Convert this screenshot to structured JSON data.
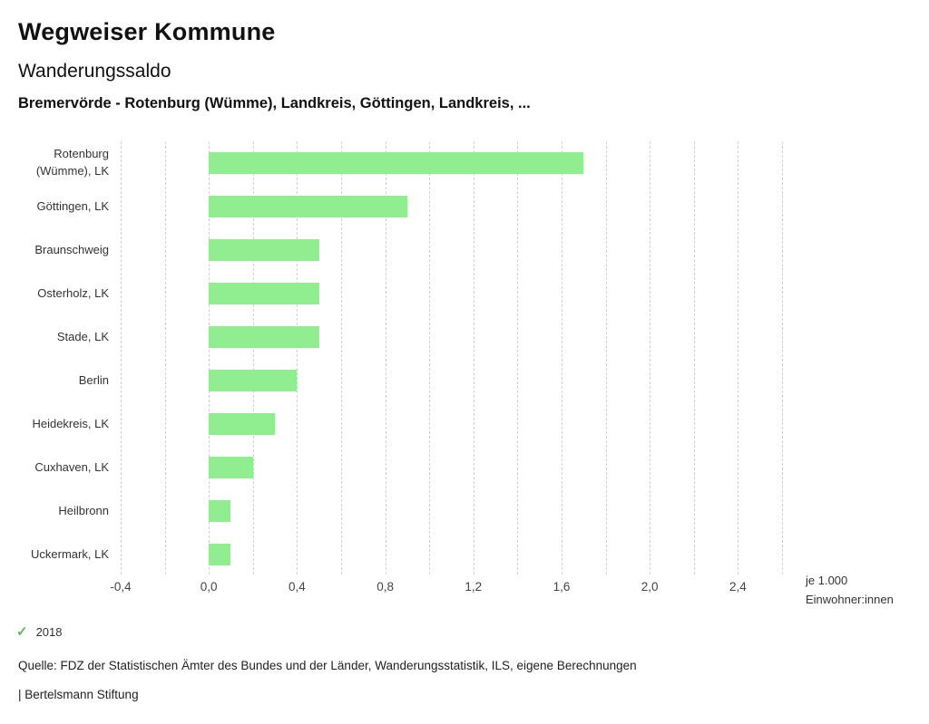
{
  "header": {
    "app_title": "Wegweiser Kommune",
    "chart_title": "Wanderungssaldo",
    "chart_subtitle": "Bremervörde - Rotenburg (Wümme), Landkreis, Göttingen, Landkreis, ..."
  },
  "chart_data": {
    "type": "bar",
    "orientation": "horizontal",
    "title": "Wanderungssaldo",
    "subtitle": "Bremervörde - Rotenburg (Wümme), Landkreis, Göttingen, Landkreis, ...",
    "categories": [
      "Rotenburg (Wümme), LK",
      "Göttingen, LK",
      "Braunschweig",
      "Osterholz, LK",
      "Stade, LK",
      "Berlin",
      "Heidekreis, LK",
      "Cuxhaven, LK",
      "Heilbronn",
      "Uckermark, LK"
    ],
    "values": [
      1.7,
      0.9,
      0.5,
      0.5,
      0.5,
      0.4,
      0.3,
      0.2,
      0.1,
      0.1
    ],
    "series_name": "2018",
    "xlim": [
      -0.4,
      2.6
    ],
    "x_ticks": [
      -0.4,
      0.0,
      0.4,
      0.8,
      1.2,
      1.6,
      2.0,
      2.4
    ],
    "x_tick_labels": [
      "-0,4",
      "0,0",
      "0,4",
      "0,8",
      "1,2",
      "1,6",
      "2,0",
      "2,4"
    ],
    "gridline_step": 0.2,
    "grid": true,
    "bar_color": "#90ee90",
    "xlabel_line1": "je 1.000",
    "xlabel_line2": "Einwohner:innen",
    "legend_position": "bottom-left"
  },
  "legend": {
    "year_label": "2018",
    "check_color": "#5cb85c"
  },
  "footer": {
    "source": "Quelle: FDZ der Statistischen Ämter des Bundes und der Länder, Wanderungsstatistik, ILS, eigene Berechnungen",
    "branding": "| Bertelsmann Stiftung"
  }
}
